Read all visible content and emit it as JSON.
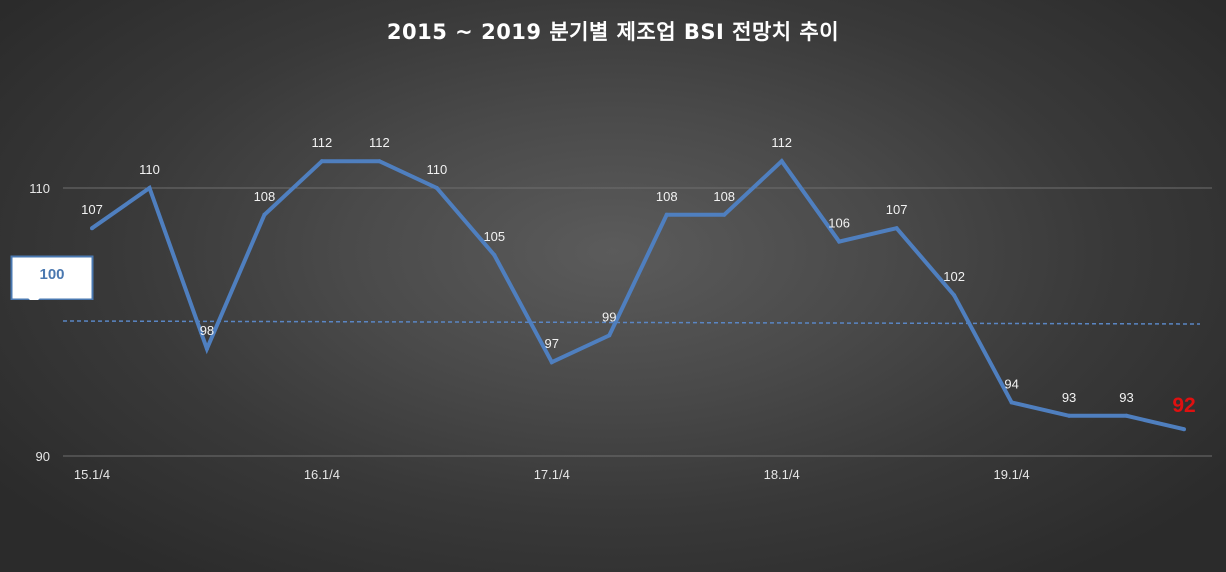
{
  "chart_data": {
    "type": "line",
    "title": "2015 ~ 2019 분기별 제조업 BSI 전망치 추이",
    "xlabel": "",
    "ylabel": "",
    "ylim": [
      90,
      110
    ],
    "yticks": [
      90,
      110
    ],
    "x_tick_labels": [
      "15.1/4",
      "",
      "",
      "",
      "16.1/4",
      "",
      "",
      "",
      "17.1/4",
      "",
      "",
      "",
      "18.1/4",
      "",
      "",
      "",
      "19.1/4",
      "",
      "",
      ""
    ],
    "series": [
      {
        "values": [
          107,
          110,
          98,
          108,
          112,
          112,
          110,
          105,
          97,
          99,
          108,
          108,
          112,
          106,
          107,
          102,
          94,
          93,
          93,
          92
        ],
        "color": "#4f7fbf"
      }
    ],
    "highlight_last": {
      "label": "92",
      "color": "#e01010"
    },
    "reference_line": {
      "value": 100,
      "label": "100",
      "style": "dashed",
      "color": "#5a86c4"
    },
    "grid": {
      "horizontal": true,
      "vertical": false
    },
    "legend": "none"
  }
}
